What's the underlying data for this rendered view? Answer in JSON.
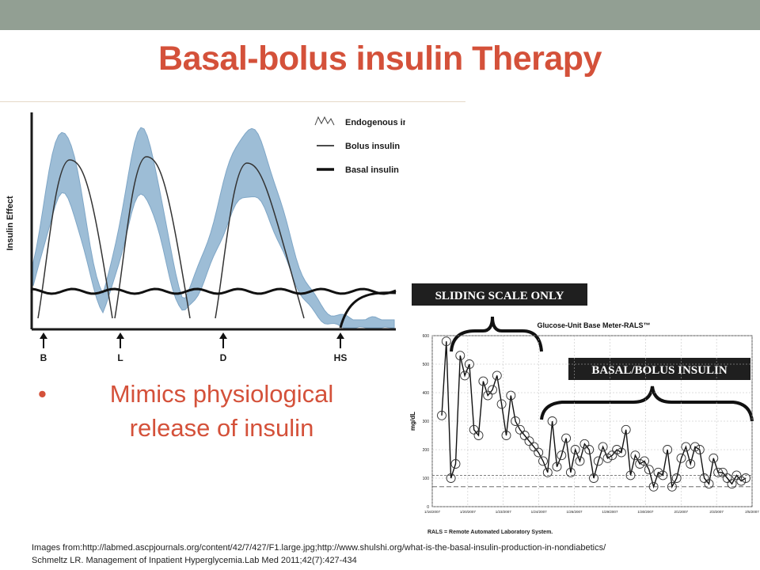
{
  "title": "Basal-bolus insulin Therapy",
  "bullet": {
    "marker": "•",
    "text": "Mimics physiological release of insulin"
  },
  "references": {
    "line1": "Images from:http://labmed.ascpjournals.org/content/42/7/427/F1.large.jpg;http://www.shulshi.org/what-is-the-basal-insulin-production-in-nondiabetics/",
    "line2": "Schmeltz LR. Management of Inpatient Hyperglycemia.Lab Med 2011;42(7):427-434"
  },
  "colors": {
    "accent": "#d4513a",
    "topbar": "#929f93",
    "band": "#9dbdd6",
    "ink": "#1a1a1a"
  },
  "chart_data": [
    {
      "type": "line",
      "title": "",
      "ylabel": "Insulin Effect",
      "xlabel": "",
      "legend": {
        "placement": "top-right",
        "entries": [
          "Endogenous insulin",
          "Bolus insulin",
          "Basal insulin"
        ]
      },
      "x_markers": [
        "B",
        "L",
        "D",
        "HS"
      ]
    },
    {
      "type": "line",
      "title": "Glucose-Unit Base Meter-RALS™",
      "ylabel": "mg/dL",
      "xlabel": "",
      "y_ticks": [
        0,
        100,
        200,
        300,
        400,
        500,
        600
      ],
      "ylim": [
        0,
        600
      ],
      "x_ticks": [
        "1/16/2007",
        "1/20/2007",
        "1/23/2007",
        "1/24/2007",
        "1/26/2007",
        "1/29/2007",
        "1/30/2007",
        "2/1/2007",
        "2/3/2007",
        "2/5/2007"
      ],
      "annotations": [
        "SLIDING SCALE ONLY",
        "BASAL/BOLUS INSULIN"
      ],
      "footnote": "RALS = Remote Automated Laboratory System.",
      "reference_lines": [
        110,
        70
      ],
      "series": [
        {
          "values": [
            320,
            580,
            100,
            150,
            530,
            460,
            500,
            270,
            250,
            440,
            390,
            410,
            460,
            360,
            250,
            390,
            300,
            270,
            250,
            230,
            210,
            190,
            160,
            120,
            300,
            140,
            180,
            240,
            120,
            200,
            160,
            220,
            200,
            100,
            160,
            210,
            170,
            180,
            200,
            190,
            270,
            110,
            180,
            150,
            160,
            130,
            70,
            120,
            110,
            200,
            70,
            100,
            170,
            210,
            150,
            210,
            200,
            100,
            80,
            170,
            120,
            120,
            100,
            80,
            110,
            90,
            100
          ]
        }
      ]
    }
  ]
}
